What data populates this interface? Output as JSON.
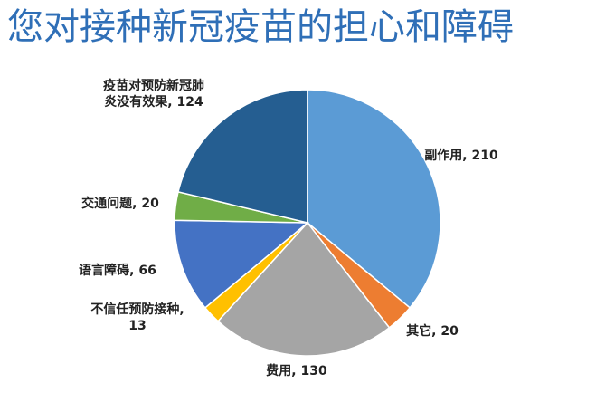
{
  "chart_data": {
    "type": "pie",
    "title": "您对接种新冠疫苗的担心和障碍",
    "colors_by_slice": [
      "#5b9bd5",
      "#ed7d31",
      "#a5a5a5",
      "#ffc000",
      "#4472c4",
      "#70ad47",
      "#255e91"
    ],
    "slices": [
      {
        "label": "副作用",
        "value": 210,
        "text": "副作用, 210"
      },
      {
        "label": "其它",
        "value": 20,
        "text": "其它, 20"
      },
      {
        "label": "费用",
        "value": 130,
        "text": "费用, 130"
      },
      {
        "label": "不信任预防接种",
        "value": 13,
        "text_lines": [
          "不信任预防接种,",
          "13"
        ]
      },
      {
        "label": "语言障碍",
        "value": 66,
        "text": "语言障碍, 66"
      },
      {
        "label": "交通问题",
        "value": 20,
        "text": "交通问题, 20"
      },
      {
        "label": "疫苗对预防新冠肺炎没有效果",
        "value": 124,
        "text_lines": [
          "疫苗对预防新冠肺",
          "炎没有效果, 124"
        ]
      }
    ],
    "legend": "none"
  }
}
